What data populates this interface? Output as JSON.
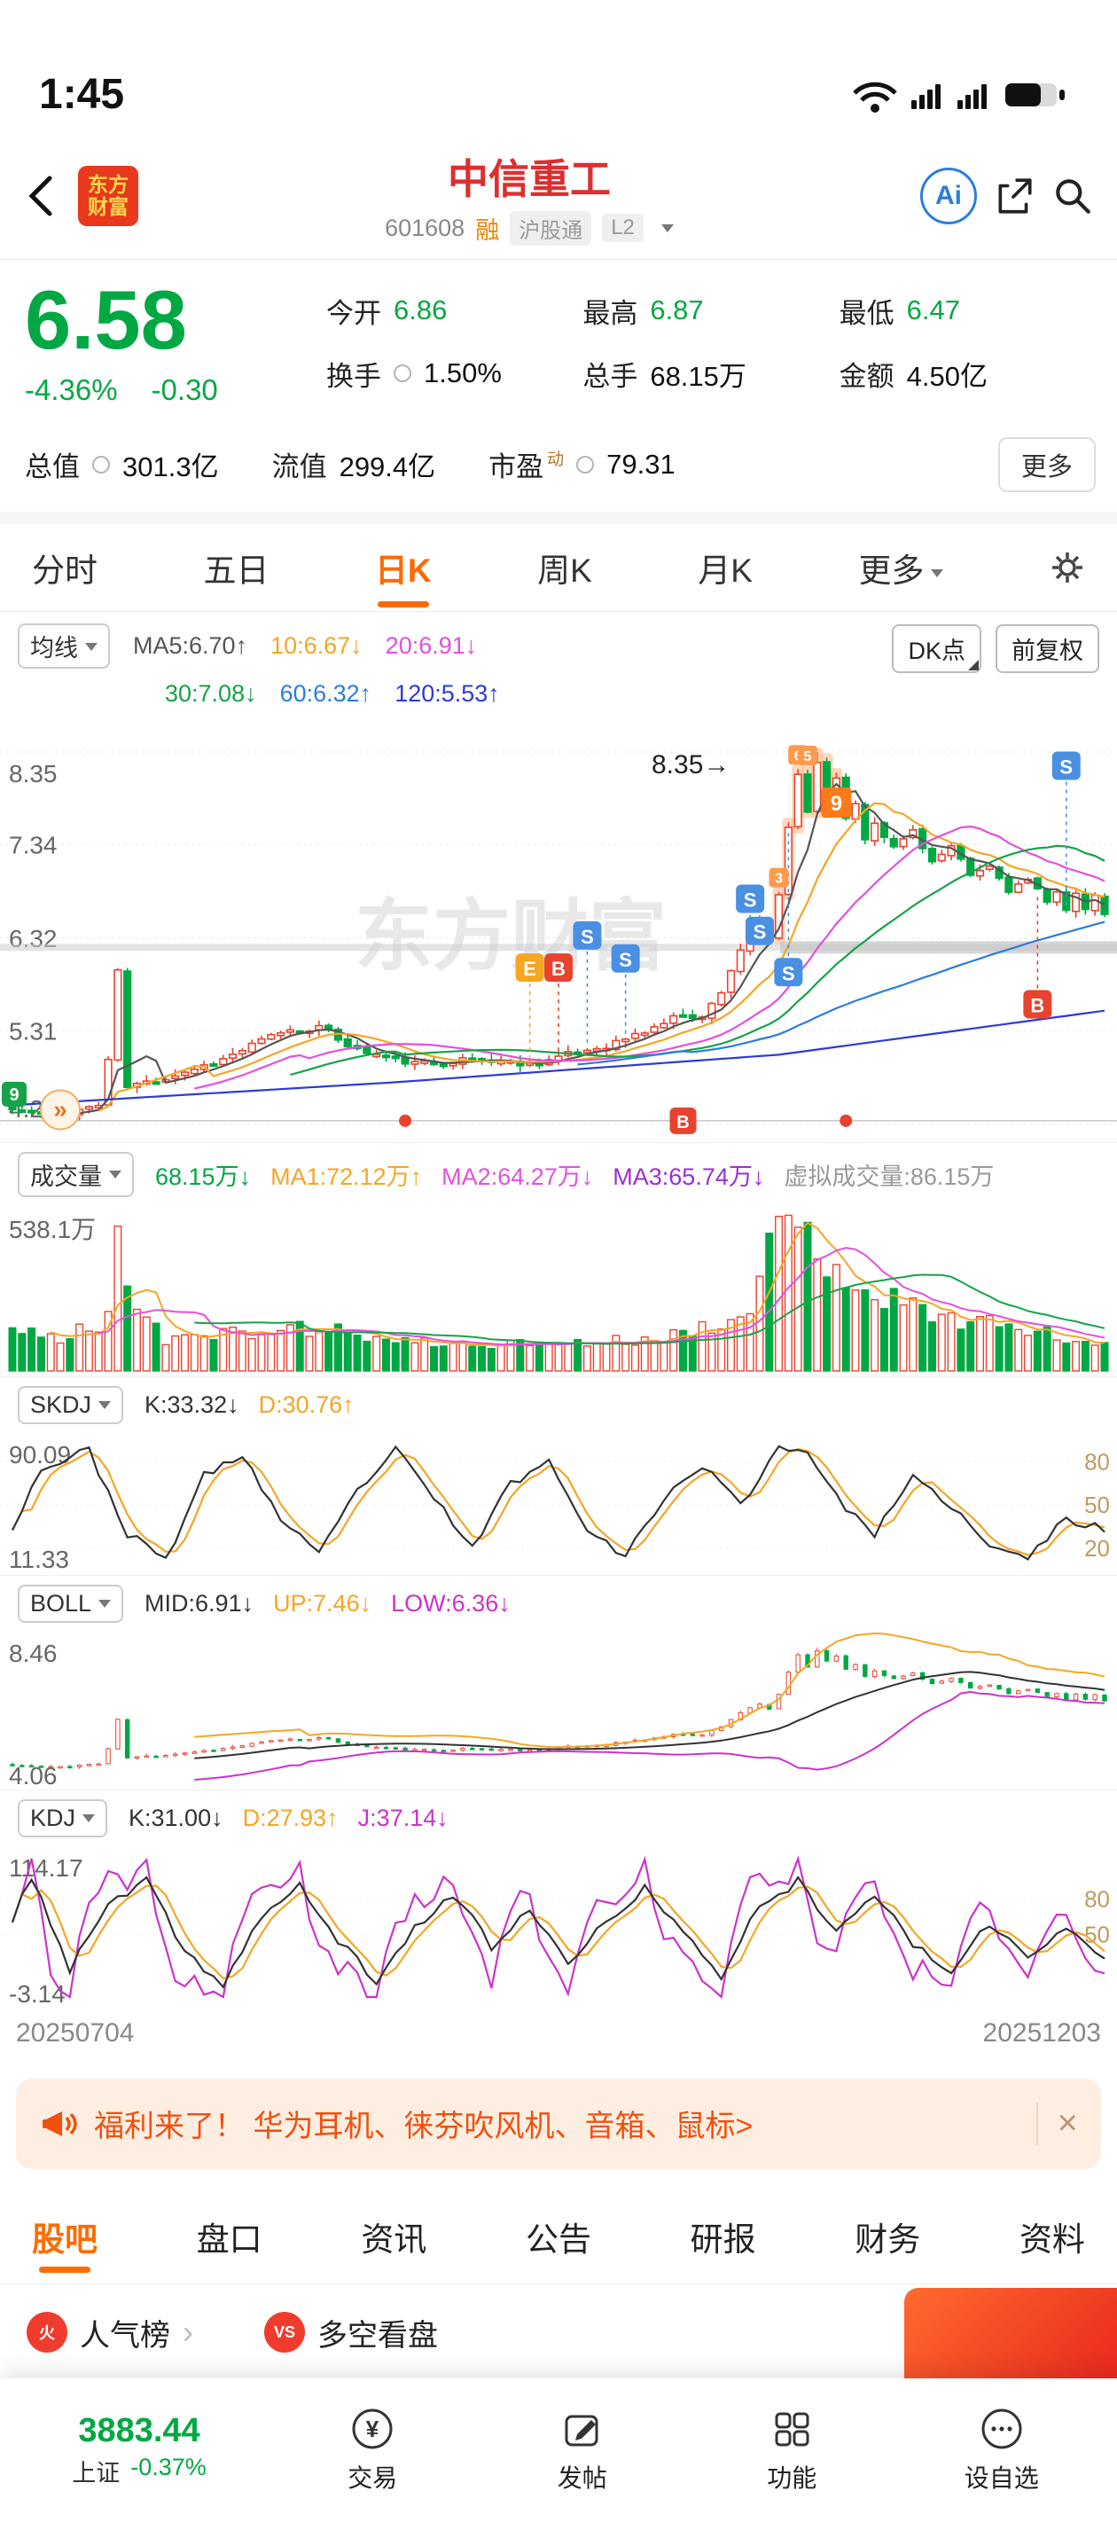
{
  "colors": {
    "green": "#00a843",
    "red": "#e8432f",
    "accent": "#ff6a00",
    "title_red": "#dd2f2f",
    "banner_orange": "#f1500f"
  },
  "status_bar": {
    "time": "1:45"
  },
  "header": {
    "logo_line1": "东方",
    "logo_line2": "财富",
    "title": "中信重工",
    "code": "601608",
    "tag_rong": "融",
    "tag_hgt": "沪股通",
    "tag_l2": "L2",
    "ai": "Ai"
  },
  "quote": {
    "price": "6.58",
    "change_pct": "-4.36%",
    "change": "-0.30",
    "row1": [
      {
        "label": "今开",
        "value": "6.86",
        "cls": "green"
      },
      {
        "label": "最高",
        "value": "6.87",
        "cls": "green"
      },
      {
        "label": "最低",
        "value": "6.47",
        "cls": "green"
      }
    ],
    "row2": [
      {
        "label": "换手",
        "value": "1.50%",
        "cls": "dark",
        "info": true
      },
      {
        "label": "总手",
        "value": "68.15万",
        "cls": "dark"
      },
      {
        "label": "金额",
        "value": "4.50亿",
        "cls": "dark"
      }
    ],
    "row3": [
      {
        "label": "总值",
        "value": "301.3亿",
        "cls": "dark",
        "info": true
      },
      {
        "label": "流值",
        "value": "299.4亿",
        "cls": "dark"
      },
      {
        "label": "市盈",
        "sup": "动",
        "value": "79.31",
        "cls": "dark",
        "info": true
      }
    ],
    "more": "更多"
  },
  "period_tabs": [
    {
      "label": "分时"
    },
    {
      "label": "五日"
    },
    {
      "label": "日K",
      "active": true
    },
    {
      "label": "周K"
    },
    {
      "label": "月K"
    },
    {
      "label": "更多",
      "caret": true
    }
  ],
  "ma_bar": {
    "chip": "均线",
    "line1": [
      {
        "text": "MA5:6.70↑",
        "color": "#555555"
      },
      {
        "text": "10:6.67↓",
        "color": "#f5a623"
      },
      {
        "text": "20:6.91↓",
        "color": "#e44fe0"
      }
    ],
    "line2": [
      {
        "text": "30:7.08↓",
        "color": "#16a348"
      },
      {
        "text": "60:6.32↑",
        "color": "#2a7de1"
      },
      {
        "text": "120:5.53↑",
        "color": "#2b3bd6"
      }
    ],
    "dk_btn": "DK点",
    "fq_btn": "前复权"
  },
  "vol_bar": {
    "chip": "成交量",
    "items": [
      {
        "text": "68.15万↓",
        "color": "#00a843"
      },
      {
        "text": "MA1:72.12万↑",
        "color": "#f5a623"
      },
      {
        "text": "MA2:64.27万↓",
        "color": "#e44fe0"
      },
      {
        "text": "MA3:65.74万↓",
        "color": "#9b30d0"
      },
      {
        "text": "虚拟成交量:86.15万",
        "color": "#999999"
      }
    ]
  },
  "skdj_bar": {
    "chip": "SKDJ",
    "items": [
      {
        "text": "K:33.32↓",
        "color": "#333333"
      },
      {
        "text": "D:30.76↑",
        "color": "#f5a623"
      }
    ]
  },
  "boll_bar": {
    "chip": "BOLL",
    "items": [
      {
        "text": "MID:6.91↓",
        "color": "#333333"
      },
      {
        "text": "UP:7.46↓",
        "color": "#f5a623"
      },
      {
        "text": "LOW:6.36↓",
        "color": "#cc33cc"
      }
    ]
  },
  "kdj_bar": {
    "chip": "KDJ",
    "items": [
      {
        "text": "K:31.00↓",
        "color": "#333333"
      },
      {
        "text": "D:27.93↑",
        "color": "#f5a623"
      },
      {
        "text": "J:37.14↓",
        "color": "#cc33cc"
      }
    ]
  },
  "chart_data": {
    "type": "candlestick",
    "title": "中信重工 601608 日K",
    "dates": {
      "start": "20250704",
      "end": "20251203"
    },
    "main": {
      "y_labels": [
        8.35,
        7.34,
        6.32,
        5.31,
        4.29
      ],
      "ylim": [
        4.29,
        8.35
      ],
      "annotation": "8.35→",
      "watermark": "东方财富",
      "n": 115,
      "close_anchors": [
        [
          0,
          4.45
        ],
        [
          4,
          4.38
        ],
        [
          9,
          4.5
        ],
        [
          10,
          5.0
        ],
        [
          11,
          5.95
        ],
        [
          12,
          4.7
        ],
        [
          16,
          4.8
        ],
        [
          22,
          5.0
        ],
        [
          28,
          5.3
        ],
        [
          32,
          5.35
        ],
        [
          36,
          5.1
        ],
        [
          42,
          4.95
        ],
        [
          48,
          5.0
        ],
        [
          54,
          4.95
        ],
        [
          58,
          5.05
        ],
        [
          62,
          5.15
        ],
        [
          66,
          5.3
        ],
        [
          70,
          5.5
        ],
        [
          72,
          5.45
        ],
        [
          74,
          5.75
        ],
        [
          76,
          6.2
        ],
        [
          78,
          6.45
        ],
        [
          79,
          6.3
        ],
        [
          80,
          6.8
        ],
        [
          81,
          7.5
        ],
        [
          82,
          8.1
        ],
        [
          83,
          7.7
        ],
        [
          84,
          8.25
        ],
        [
          85,
          7.9
        ],
        [
          86,
          8.1
        ],
        [
          87,
          7.6
        ],
        [
          88,
          7.8
        ],
        [
          89,
          7.4
        ],
        [
          90,
          7.6
        ],
        [
          92,
          7.3
        ],
        [
          94,
          7.5
        ],
        [
          96,
          7.15
        ],
        [
          98,
          7.3
        ],
        [
          100,
          7.0
        ],
        [
          102,
          7.1
        ],
        [
          104,
          6.85
        ],
        [
          106,
          6.95
        ],
        [
          108,
          6.7
        ],
        [
          109,
          6.85
        ],
        [
          110,
          6.65
        ],
        [
          111,
          6.8
        ],
        [
          112,
          6.6
        ],
        [
          113,
          6.8
        ],
        [
          114,
          6.58
        ]
      ],
      "ma120_anchors": [
        [
          0,
          4.5
        ],
        [
          40,
          4.75
        ],
        [
          80,
          5.05
        ],
        [
          114,
          5.53
        ]
      ],
      "markers": [
        {
          "i": 54,
          "t": "E",
          "c": "#f5a623",
          "p": 6.0
        },
        {
          "i": 57,
          "t": "B",
          "c": "#e8432f",
          "p": 6.0
        },
        {
          "i": 60,
          "t": "S",
          "c": "#4a90e2",
          "p": 6.35
        },
        {
          "i": 64,
          "t": "S",
          "c": "#4a90e2",
          "p": 6.1
        },
        {
          "i": 77,
          "t": "S",
          "c": "#4a90e2",
          "p": 6.75
        },
        {
          "i": 78,
          "t": "S",
          "c": "#4a90e2",
          "p": 6.4
        },
        {
          "i": 81,
          "t": "S",
          "c": "#4a90e2",
          "p": 5.95
        },
        {
          "i": 110,
          "t": "S",
          "c": "#4a90e2",
          "p": 8.2
        },
        {
          "i": 107,
          "t": "B",
          "c": "#e8432f",
          "p": 5.6
        }
      ],
      "numbers": [
        {
          "i": 80,
          "n": "3"
        },
        {
          "i": 82,
          "n": "6"
        },
        {
          "i": 83,
          "n": "5"
        },
        {
          "i": 86,
          "n": "9",
          "big": true
        }
      ],
      "baseline": {
        "p": 4.33,
        "dots": [
          41,
          87
        ],
        "b_marker": 70
      },
      "left_badge": "9",
      "gray_band_p": 6.22
    },
    "volume": {
      "y_label": "538.1万",
      "max": 538.1,
      "anchors": [
        [
          0,
          120
        ],
        [
          5,
          90
        ],
        [
          10,
          160
        ],
        [
          11,
          420
        ],
        [
          12,
          320
        ],
        [
          16,
          90
        ],
        [
          24,
          110
        ],
        [
          32,
          130
        ],
        [
          40,
          80
        ],
        [
          48,
          70
        ],
        [
          56,
          75
        ],
        [
          64,
          85
        ],
        [
          70,
          110
        ],
        [
          74,
          160
        ],
        [
          76,
          220
        ],
        [
          78,
          260
        ],
        [
          80,
          538
        ],
        [
          81,
          500
        ],
        [
          82,
          470
        ],
        [
          84,
          430
        ],
        [
          86,
          380
        ],
        [
          88,
          300
        ],
        [
          90,
          260
        ],
        [
          94,
          200
        ],
        [
          98,
          170
        ],
        [
          102,
          150
        ],
        [
          106,
          120
        ],
        [
          110,
          95
        ],
        [
          114,
          68
        ]
      ]
    },
    "skdj": {
      "y_top": 90.09,
      "y_bottom": 11.33,
      "right_labels": [
        80,
        50,
        20
      ],
      "k_anchors": [
        [
          0,
          35
        ],
        [
          3,
          75
        ],
        [
          8,
          88
        ],
        [
          12,
          30
        ],
        [
          16,
          12
        ],
        [
          20,
          70
        ],
        [
          24,
          85
        ],
        [
          28,
          40
        ],
        [
          32,
          15
        ],
        [
          36,
          60
        ],
        [
          40,
          88
        ],
        [
          44,
          55
        ],
        [
          48,
          20
        ],
        [
          52,
          65
        ],
        [
          56,
          80
        ],
        [
          60,
          35
        ],
        [
          64,
          14
        ],
        [
          68,
          55
        ],
        [
          72,
          78
        ],
        [
          76,
          50
        ],
        [
          80,
          90
        ],
        [
          83,
          88
        ],
        [
          86,
          55
        ],
        [
          90,
          30
        ],
        [
          94,
          68
        ],
        [
          98,
          50
        ],
        [
          102,
          20
        ],
        [
          106,
          14
        ],
        [
          110,
          40
        ],
        [
          114,
          33.32
        ]
      ]
    },
    "boll": {
      "y_top": 8.46,
      "y_bottom": 4.06
    },
    "kdj": {
      "y_top": 114.17,
      "y_bottom": -3.14,
      "right_labels": [
        80,
        50
      ],
      "k_anchors": [
        [
          0,
          60
        ],
        [
          2,
          100
        ],
        [
          6,
          20
        ],
        [
          10,
          75
        ],
        [
          14,
          95
        ],
        [
          18,
          35
        ],
        [
          22,
          8
        ],
        [
          26,
          65
        ],
        [
          30,
          90
        ],
        [
          34,
          45
        ],
        [
          38,
          10
        ],
        [
          42,
          55
        ],
        [
          46,
          85
        ],
        [
          50,
          40
        ],
        [
          54,
          70
        ],
        [
          58,
          25
        ],
        [
          62,
          60
        ],
        [
          66,
          90
        ],
        [
          70,
          50
        ],
        [
          74,
          15
        ],
        [
          78,
          75
        ],
        [
          82,
          95
        ],
        [
          86,
          55
        ],
        [
          90,
          85
        ],
        [
          94,
          40
        ],
        [
          98,
          20
        ],
        [
          102,
          60
        ],
        [
          106,
          30
        ],
        [
          110,
          55
        ],
        [
          114,
          31
        ]
      ]
    }
  },
  "dates": {
    "start": "20250704",
    "end": "20251203"
  },
  "banner": {
    "text": "福利来了！ 华为耳机、徕芬吹风机、音箱、鼠标",
    "arrow": ">",
    "close": "×"
  },
  "bottom_tabs": [
    {
      "label": "股吧",
      "active": true
    },
    {
      "label": "盘口"
    },
    {
      "label": "资讯"
    },
    {
      "label": "公告"
    },
    {
      "label": "研报"
    },
    {
      "label": "财务"
    },
    {
      "label": "资料"
    }
  ],
  "shortcuts": {
    "item1": "人气榜",
    "item1_icon": "火",
    "item2": "多空看盘",
    "item2_icon": "VS",
    "chevron": "›"
  },
  "bottom_nav": {
    "index_value": "3883.44",
    "index_name": "上证",
    "index_change": "-0.37%",
    "items": [
      {
        "label": "交易"
      },
      {
        "label": "发帖"
      },
      {
        "label": "功能"
      },
      {
        "label": "设自选"
      }
    ]
  }
}
